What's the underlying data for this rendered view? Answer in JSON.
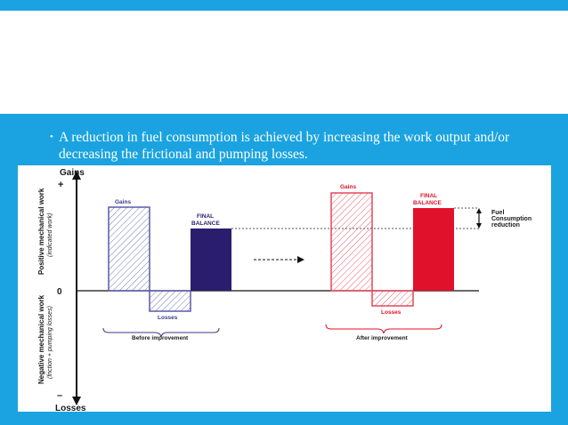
{
  "slide": {
    "bullet_text": "A reduction in fuel consumption is achieved by increasing the work output and/or decreasing the frictional and pumping losses.",
    "bullet_glyph": "•"
  },
  "diagram": {
    "axis": {
      "gains_label": "Gains",
      "losses_label": "Losses",
      "plus_sign": "+",
      "minus_sign": "–",
      "zero_label": "0",
      "positive_label": "Positive mechanical work",
      "positive_sublabel": "(indicated work)",
      "negative_label": "Negative mechanical work",
      "negative_sublabel": "(friction + pumping losses)"
    },
    "before": {
      "gains_label": "Gains",
      "losses_label": "Losses",
      "final_label_line1": "FINAL",
      "final_label_line2": "BALANCE",
      "caption": "Before improvement",
      "color": "#7474b8",
      "final_color": "#2b1d6e"
    },
    "after": {
      "gains_label": "Gains",
      "losses_label": "Losses",
      "final_label_line1": "FINAL",
      "final_label_line2": "BALANCE",
      "caption": "After improvement",
      "color": "#e85c6a",
      "final_color": "#e0112a"
    },
    "fuel_label_line1": "Fuel",
    "fuel_label_line2": "Consumption",
    "fuel_label_line3": "reduction",
    "colors": {
      "background": "#1aa3e0",
      "text_dark": "#1a1a1a"
    }
  }
}
